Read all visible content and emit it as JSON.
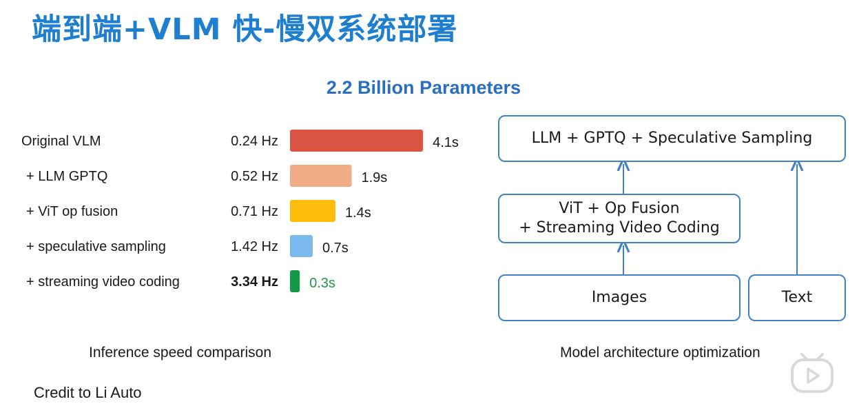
{
  "page": {
    "title": "端到端+VLM 快-慢双系统部署",
    "subtitle": "2.2 Billion Parameters",
    "caption_left": "Inference speed comparison",
    "caption_right": "Model architecture optimization",
    "credit": "Credit to Li Auto"
  },
  "chart_data": {
    "type": "bar",
    "orientation": "horizontal",
    "categories": [
      "Original VLM",
      "+ LLM GPTQ",
      "+ ViT op fusion",
      "+ speculative sampling",
      "+ streaming video coding"
    ],
    "frequency_labels": [
      "0.24 Hz",
      "0.52 Hz",
      "0.71 Hz",
      "1.42 Hz",
      "3.34 Hz"
    ],
    "values": [
      4.1,
      1.9,
      1.4,
      0.7,
      0.3
    ],
    "value_labels": [
      "4.1s",
      "1.9s",
      "1.4s",
      "0.7s",
      "0.3s"
    ],
    "colors": [
      "#db5443",
      "#f1ad85",
      "#fcbd0c",
      "#7ab8ee",
      "#149a47"
    ],
    "value_label_colors": [
      "#1a1a1a",
      "#1a1a1a",
      "#1a1a1a",
      "#1a1a1a",
      "#1e9a4a"
    ],
    "highlight_index": 4,
    "grid": false,
    "axes_visible": false
  },
  "diagram": {
    "box_llm": "LLM + GPTQ + Speculative Sampling",
    "box_vit_line1": "ViT + Op Fusion",
    "box_vit_line2": "+ Streaming Video Coding",
    "box_images": "Images",
    "box_text": "Text",
    "accent_color": "#3f82c6"
  }
}
